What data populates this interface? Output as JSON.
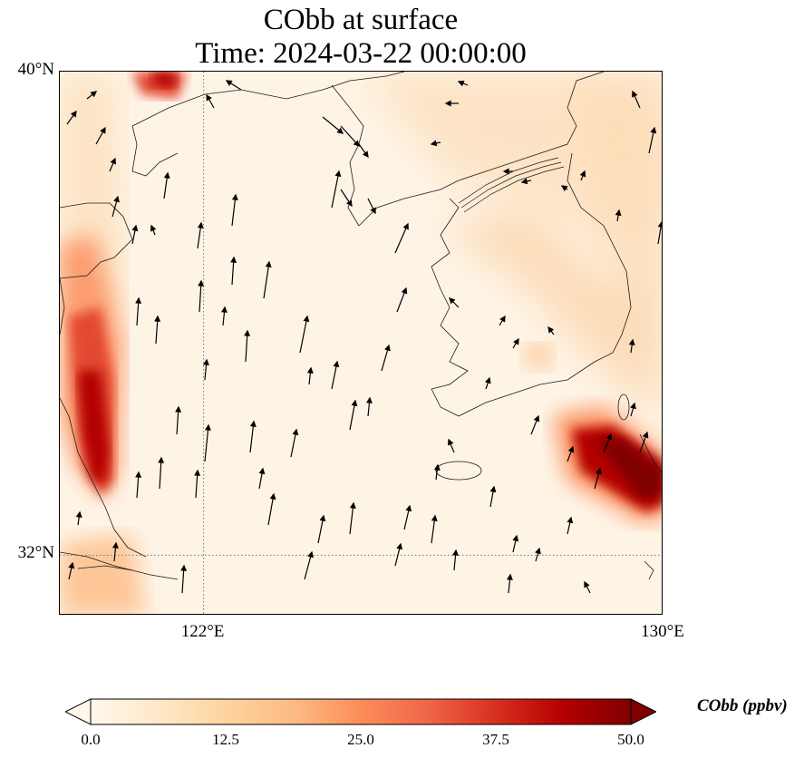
{
  "map": {
    "title_line1": "CObb at surface",
    "title_line2": "Time: 2024-03-22 00:00:00",
    "extent": {
      "lon_min": 119.5,
      "lon_max": 130.0,
      "lat_min": 31.0,
      "lat_max": 40.0
    },
    "lat_labels": [
      {
        "text": "40°N",
        "lat": 40
      },
      {
        "text": "32°N",
        "lat": 32
      }
    ],
    "lon_labels": [
      {
        "text": "122°E",
        "lon": 122
      },
      {
        "text": "130°E",
        "lon": 130
      }
    ],
    "gridlines": {
      "lons": [
        122
      ],
      "lats": [
        32
      ],
      "style": "dotted"
    },
    "field": "CObb",
    "vector_field": "wind",
    "colors": {
      "ocean_bg": "#fef4e6",
      "coast": "#1a1a1a",
      "arrow": "#000000",
      "grid": "#777777"
    }
  },
  "colorbar": {
    "label": "CObb (ppbv)",
    "ticks": [
      "0.0",
      "12.5",
      "25.0",
      "37.5",
      "50.0"
    ],
    "min": 0,
    "max": 50,
    "extend": "both",
    "colormap": "OrRd",
    "stops": [
      "#fff7ec",
      "#fee8c8",
      "#fdd49e",
      "#fdbb84",
      "#fc8d59",
      "#ef6548",
      "#d7301f",
      "#b30000",
      "#7f0000"
    ]
  },
  "concentration_features": [
    {
      "name": "west coast plume",
      "lon_range": [
        119.5,
        120.6
      ],
      "lat_range": [
        32.0,
        36.0
      ],
      "peak_ppbv": 50
    },
    {
      "name": "east sea plume",
      "lon_range": [
        128.3,
        130.0
      ],
      "lat_range": [
        32.6,
        33.6
      ],
      "peak_ppbv": 50
    },
    {
      "name": "north bay hotspot",
      "lon_range": [
        120.8,
        121.6
      ],
      "lat_range": [
        39.6,
        40.0
      ],
      "peak_ppbv": 40
    }
  ]
}
